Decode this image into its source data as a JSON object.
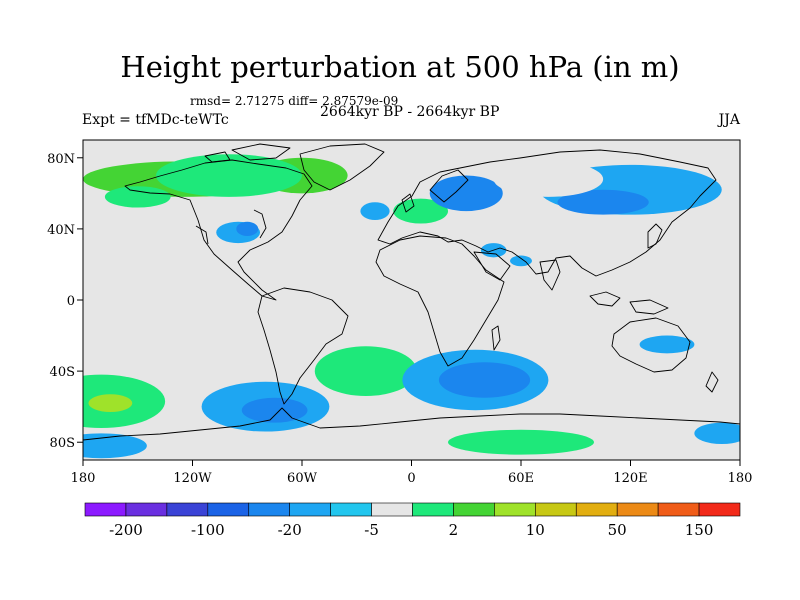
{
  "figure": {
    "title": "Height perturbation at 500 hPa (in m)",
    "stats": "rmsd= 2.71275 diff= 2.87579e-09",
    "experiment": "Expt = tfMDc-teWTc",
    "period": "2664kyr BP - 2664kyr BP",
    "season": "JJA"
  },
  "map": {
    "lon_range": [
      -180,
      180
    ],
    "lat_range": [
      -90,
      90
    ],
    "x_ticks": [
      {
        "lon": -180,
        "label": "180"
      },
      {
        "lon": -120,
        "label": "120W"
      },
      {
        "lon": -60,
        "label": "60W"
      },
      {
        "lon": 0,
        "label": "0"
      },
      {
        "lon": 60,
        "label": "60E"
      },
      {
        "lon": 120,
        "label": "120E"
      },
      {
        "lon": 180,
        "label": "180"
      }
    ],
    "y_ticks": [
      {
        "lat": 80,
        "label": "80N"
      },
      {
        "lat": 40,
        "label": "40N"
      },
      {
        "lat": 0,
        "label": "0"
      },
      {
        "lat": -40,
        "label": "40S"
      },
      {
        "lat": -80,
        "label": "80S"
      }
    ],
    "background_color": "#e6e6e6",
    "anomalies": [
      {
        "lon": -125,
        "lat": 68,
        "rx": 55,
        "ry": 10,
        "level": 9
      },
      {
        "lon": -60,
        "lat": 70,
        "rx": 25,
        "ry": 10,
        "level": 9
      },
      {
        "lon": -100,
        "lat": 70,
        "rx": 40,
        "ry": 12,
        "level": 8
      },
      {
        "lon": -150,
        "lat": 58,
        "rx": 18,
        "ry": 6,
        "level": 8
      },
      {
        "lon": -140,
        "lat": 38,
        "rx": 12,
        "ry": 5,
        "level": 7
      },
      {
        "lon": -95,
        "lat": 38,
        "rx": 12,
        "ry": 6,
        "level": 5
      },
      {
        "lon": -90,
        "lat": 40,
        "rx": 6,
        "ry": 4,
        "level": 4
      },
      {
        "lon": -20,
        "lat": 50,
        "rx": 8,
        "ry": 5,
        "level": 5
      },
      {
        "lon": 5,
        "lat": 50,
        "rx": 15,
        "ry": 7,
        "level": 8
      },
      {
        "lon": 30,
        "lat": 60,
        "rx": 20,
        "ry": 10,
        "level": 4
      },
      {
        "lon": 120,
        "lat": 62,
        "rx": 50,
        "ry": 14,
        "level": 5
      },
      {
        "lon": 105,
        "lat": 55,
        "rx": 25,
        "ry": 7,
        "level": 4
      },
      {
        "lon": 75,
        "lat": 68,
        "rx": 30,
        "ry": 10,
        "level": 7
      },
      {
        "lon": 140,
        "lat": 82,
        "rx": 40,
        "ry": 6,
        "level": 7
      },
      {
        "lon": -15,
        "lat": 25,
        "rx": 18,
        "ry": 6,
        "level": 7
      },
      {
        "lon": 45,
        "lat": 28,
        "rx": 7,
        "ry": 4,
        "level": 5
      },
      {
        "lon": 60,
        "lat": 22,
        "rx": 6,
        "ry": 3,
        "level": 5
      },
      {
        "lon": 70,
        "lat": 15,
        "rx": 6,
        "ry": 3,
        "level": 7
      },
      {
        "lon": -170,
        "lat": -57,
        "rx": 35,
        "ry": 15,
        "level": 8
      },
      {
        "lon": -165,
        "lat": -58,
        "rx": 12,
        "ry": 5,
        "level": 10
      },
      {
        "lon": -120,
        "lat": -30,
        "rx": 25,
        "ry": 6,
        "level": 7
      },
      {
        "lon": -80,
        "lat": -60,
        "rx": 35,
        "ry": 14,
        "level": 5
      },
      {
        "lon": -75,
        "lat": -62,
        "rx": 18,
        "ry": 7,
        "level": 4
      },
      {
        "lon": -25,
        "lat": -40,
        "rx": 28,
        "ry": 14,
        "level": 8
      },
      {
        "lon": 35,
        "lat": -45,
        "rx": 40,
        "ry": 17,
        "level": 5
      },
      {
        "lon": 40,
        "lat": -45,
        "rx": 25,
        "ry": 10,
        "level": 4
      },
      {
        "lon": 100,
        "lat": -40,
        "rx": 25,
        "ry": 13,
        "level": 7
      },
      {
        "lon": 140,
        "lat": -25,
        "rx": 15,
        "ry": 5,
        "level": 5
      },
      {
        "lon": 160,
        "lat": -50,
        "rx": 18,
        "ry": 8,
        "level": 7
      },
      {
        "lon": 35,
        "lat": -80,
        "rx": 60,
        "ry": 12,
        "level": 7
      },
      {
        "lon": 60,
        "lat": -80,
        "rx": 40,
        "ry": 7,
        "level": 8
      },
      {
        "lon": -170,
        "lat": -82,
        "rx": 25,
        "ry": 7,
        "level": 5
      },
      {
        "lon": 170,
        "lat": -75,
        "rx": 15,
        "ry": 6,
        "level": 5
      }
    ]
  },
  "colorbar": {
    "colors": [
      "#8c1aff",
      "#6a2fe0",
      "#3a43d6",
      "#1b63e6",
      "#1b86ee",
      "#1ea6f2",
      "#22c6ee",
      "#e6e6e6",
      "#1ee87a",
      "#44d434",
      "#9fe22a",
      "#c7c814",
      "#e2ae10",
      "#ec8a16",
      "#f05c18",
      "#f22a1a"
    ],
    "labels": [
      "-200",
      "-100",
      "-20",
      "-5",
      "2",
      "10",
      "50",
      "150"
    ]
  }
}
